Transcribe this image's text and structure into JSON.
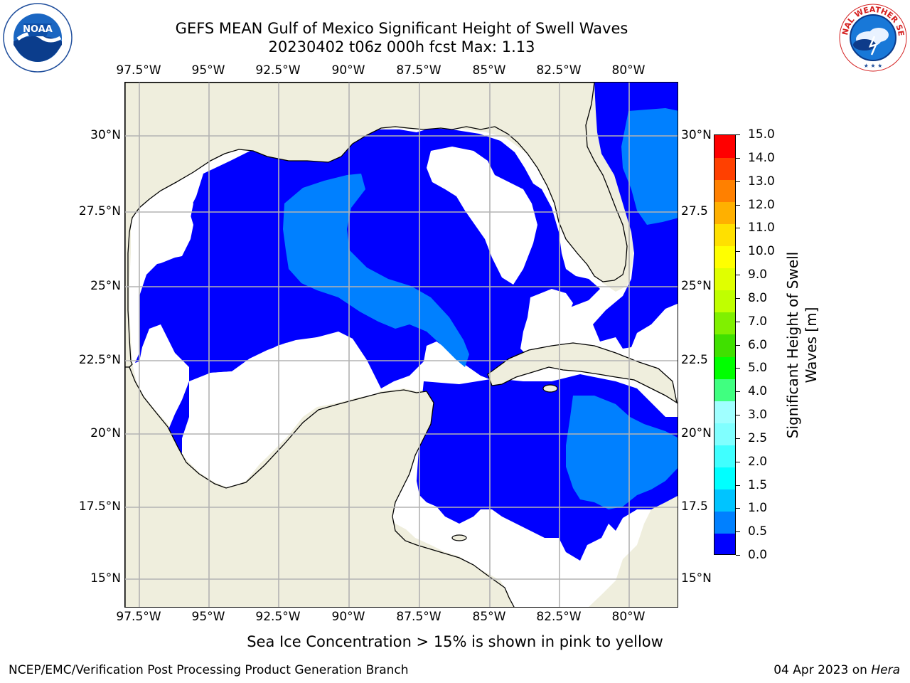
{
  "header": {
    "title_line1": "GEFS MEAN Gulf of Mexico Significant Height of Swell Waves",
    "title_line2": "20230402 t06z 000h fcst   Max: 1.13"
  },
  "logos": {
    "noaa_text": "NOAA",
    "noaa_ring_text": "NATIONAL OCEANIC AND ATMOSPHERIC ADMINISTRATION · U.S. DEPARTMENT OF COMMERCE",
    "nws_ring_text": "NATIONAL WEATHER SERVICE"
  },
  "map": {
    "lon_range": [
      -98.5,
      -79.2
    ],
    "lat_range": [
      14.0,
      31.8
    ],
    "lon_ticks": [
      "97.5°W",
      "95°W",
      "92.5°W",
      "90°W",
      "87.5°W",
      "85°W",
      "82.5°W",
      "80°W"
    ],
    "lat_ticks_left": [
      "30°N",
      "27.5°N",
      "25°N",
      "22.5°N",
      "20°N",
      "17.5°N",
      "15°N"
    ],
    "lat_ticks_right": [
      "30°N",
      "27.5",
      "25°N",
      "22.5",
      "20°N",
      "17.5",
      "15°N"
    ],
    "gridlines": true,
    "land_color": "#efeedd",
    "coast_color": "#000000",
    "grid_color": "#b3b3b3"
  },
  "colorbar": {
    "title_line1": "Significant Height of Swell",
    "title_line2": "Waves [m]",
    "labels": [
      "0.0",
      "0.5",
      "1.0",
      "1.5",
      "2.0",
      "2.5",
      "3.0",
      "4.0",
      "5.0",
      "6.0",
      "7.0",
      "8.0",
      "9.0",
      "10.0",
      "11.0",
      "12.0",
      "13.0",
      "14.0",
      "15.0"
    ],
    "colors": [
      "#0000ff",
      "#0080ff",
      "#00c4ff",
      "#00ffff",
      "#40ffff",
      "#80ffff",
      "#a0ffff",
      "#40ff80",
      "#00ff00",
      "#40e000",
      "#80f000",
      "#c0ff00",
      "#e0ff00",
      "#ffff00",
      "#ffe000",
      "#ffb000",
      "#ff8000",
      "#ff4000",
      "#ff0000"
    ]
  },
  "notes": {
    "sea_ice": "Sea Ice Concentration > 15% is shown in pink to yellow"
  },
  "footer": {
    "left": "NCEP/EMC/Verification Post Processing Product Generation Branch",
    "right_prefix": "04 Apr 2023 on ",
    "right_host": "Hera"
  }
}
